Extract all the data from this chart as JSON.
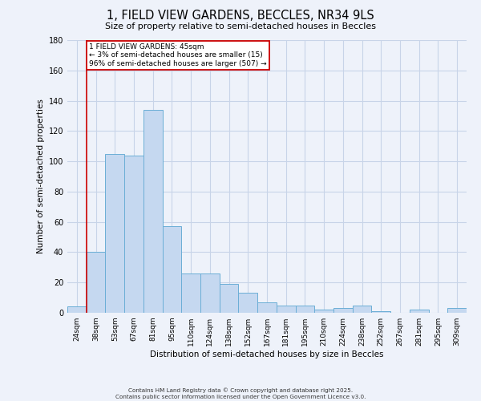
{
  "title": "1, FIELD VIEW GARDENS, BECCLES, NR34 9LS",
  "subtitle": "Size of property relative to semi-detached houses in Beccles",
  "xlabel": "Distribution of semi-detached houses by size in Beccles",
  "ylabel": "Number of semi-detached properties",
  "bin_labels": [
    "24sqm",
    "38sqm",
    "53sqm",
    "67sqm",
    "81sqm",
    "95sqm",
    "110sqm",
    "124sqm",
    "138sqm",
    "152sqm",
    "167sqm",
    "181sqm",
    "195sqm",
    "210sqm",
    "224sqm",
    "238sqm",
    "252sqm",
    "267sqm",
    "281sqm",
    "295sqm",
    "309sqm"
  ],
  "bar_heights": [
    4,
    40,
    105,
    104,
    134,
    57,
    26,
    26,
    19,
    13,
    7,
    5,
    5,
    2,
    3,
    5,
    1,
    0,
    2,
    0,
    3
  ],
  "bar_color": "#c5d8f0",
  "bar_edge_color": "#6baed6",
  "property_line_x": 1,
  "property_line_color": "#cc0000",
  "annotation_title": "1 FIELD VIEW GARDENS: 45sqm",
  "annotation_line1": "← 3% of semi-detached houses are smaller (15)",
  "annotation_line2": "96% of semi-detached houses are larger (507) →",
  "annotation_box_facecolor": "#ffffff",
  "annotation_box_edgecolor": "#cc0000",
  "ylim": [
    0,
    180
  ],
  "yticks": [
    0,
    20,
    40,
    60,
    80,
    100,
    120,
    140,
    160,
    180
  ],
  "grid_color": "#c8d4e8",
  "footer_line1": "Contains HM Land Registry data © Crown copyright and database right 2025.",
  "footer_line2": "Contains public sector information licensed under the Open Government Licence v3.0.",
  "background_color": "#eef2fa"
}
